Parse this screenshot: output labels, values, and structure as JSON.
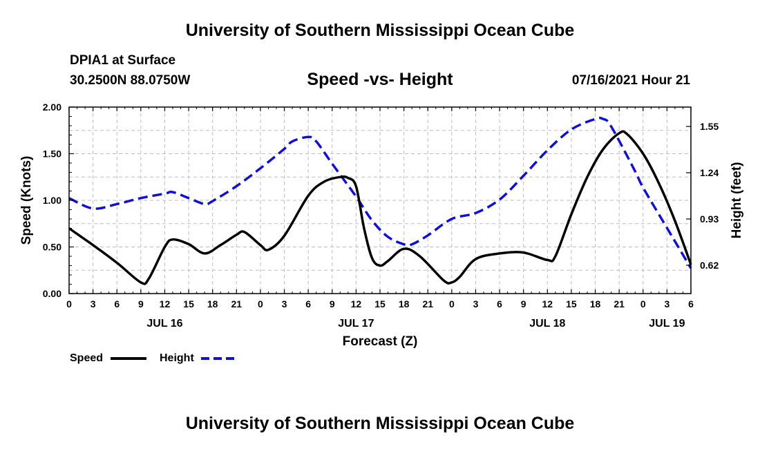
{
  "header": {
    "title": "University of Southern Mississippi Ocean Cube",
    "station": "DPIA1 at Surface",
    "coords": "30.2500N  88.0750W",
    "chart_title": "Speed -vs- Height",
    "datetime": "07/16/2021 Hour 21"
  },
  "footer": {
    "title": "University of Southern Mississippi Ocean Cube"
  },
  "legend": {
    "speed_label": "Speed",
    "height_label": "Height"
  },
  "colors": {
    "speed": "#000000",
    "height": "#1010d0",
    "grid": "#bdbdbd"
  },
  "chart_data": {
    "type": "line",
    "title": "Speed -vs- Height",
    "xlabel": "Forecast (Z)",
    "ylabel": "Speed (Knots)",
    "y2label": "Height (feet)",
    "x_unit": "hours since 2021-07-16 00Z",
    "xlim": [
      0,
      78
    ],
    "ylim": [
      0,
      2.0
    ],
    "y_ticks": [
      "0.00",
      "0.50",
      "1.00",
      "1.50",
      "2.00"
    ],
    "y_tick_values": [
      0,
      0.5,
      1.0,
      1.5,
      2.0
    ],
    "y2lim": [
      0.43,
      1.68
    ],
    "y2_ticks": [
      "0.62",
      "0.93",
      "1.24",
      "1.55"
    ],
    "y2_tick_values": [
      0.62,
      0.93,
      1.24,
      1.55
    ],
    "x_ticks": [
      {
        "x": 0,
        "label": "0"
      },
      {
        "x": 3,
        "label": "3"
      },
      {
        "x": 6,
        "label": "6"
      },
      {
        "x": 9,
        "label": "9"
      },
      {
        "x": 12,
        "label": "12"
      },
      {
        "x": 15,
        "label": "15"
      },
      {
        "x": 18,
        "label": "18"
      },
      {
        "x": 21,
        "label": "21"
      },
      {
        "x": 24,
        "label": "0"
      },
      {
        "x": 27,
        "label": "3"
      },
      {
        "x": 30,
        "label": "6"
      },
      {
        "x": 33,
        "label": "9"
      },
      {
        "x": 36,
        "label": "12"
      },
      {
        "x": 39,
        "label": "15"
      },
      {
        "x": 42,
        "label": "18"
      },
      {
        "x": 45,
        "label": "21"
      },
      {
        "x": 48,
        "label": "0"
      },
      {
        "x": 51,
        "label": "3"
      },
      {
        "x": 54,
        "label": "6"
      },
      {
        "x": 57,
        "label": "9"
      },
      {
        "x": 60,
        "label": "12"
      },
      {
        "x": 63,
        "label": "15"
      },
      {
        "x": 66,
        "label": "18"
      },
      {
        "x": 69,
        "label": "21"
      },
      {
        "x": 72,
        "label": "0"
      },
      {
        "x": 75,
        "label": "3"
      },
      {
        "x": 78,
        "label": "6"
      }
    ],
    "date_labels": [
      {
        "x": 12,
        "label": "JUL 16"
      },
      {
        "x": 36,
        "label": "JUL 17"
      },
      {
        "x": 60,
        "label": "JUL 18"
      },
      {
        "x": 75,
        "label": "JUL 19"
      }
    ],
    "series": [
      {
        "name": "Speed",
        "axis": "left",
        "style": "solid",
        "x": [
          0,
          3,
          6,
          9,
          10,
          12,
          13,
          15,
          17,
          19,
          21,
          22,
          24,
          25,
          27,
          30,
          32,
          34,
          35,
          36,
          37,
          38,
          39,
          40,
          42,
          44,
          47,
          48,
          49,
          51,
          54,
          57,
          60,
          61,
          63,
          65,
          67,
          69,
          70,
          72,
          74,
          76,
          78
        ],
        "values": [
          0.7,
          0.52,
          0.33,
          0.12,
          0.16,
          0.5,
          0.58,
          0.53,
          0.43,
          0.52,
          0.63,
          0.66,
          0.52,
          0.47,
          0.62,
          1.05,
          1.2,
          1.25,
          1.24,
          1.15,
          0.7,
          0.38,
          0.3,
          0.35,
          0.48,
          0.4,
          0.14,
          0.12,
          0.18,
          0.37,
          0.43,
          0.44,
          0.36,
          0.4,
          0.85,
          1.25,
          1.55,
          1.72,
          1.71,
          1.5,
          1.18,
          0.78,
          0.31
        ]
      },
      {
        "name": "Height",
        "axis": "right",
        "style": "dashed",
        "x": [
          0,
          3,
          6,
          9,
          12,
          13,
          15,
          17,
          18,
          21,
          24,
          27,
          28,
          30,
          31,
          33,
          36,
          38,
          40,
          42,
          43,
          45,
          48,
          51,
          54,
          57,
          60,
          63,
          66,
          67,
          68,
          71,
          72,
          75,
          78
        ],
        "values": [
          1.07,
          1.0,
          1.03,
          1.07,
          1.1,
          1.11,
          1.07,
          1.03,
          1.05,
          1.15,
          1.27,
          1.4,
          1.45,
          1.48,
          1.45,
          1.3,
          1.08,
          0.92,
          0.81,
          0.76,
          0.76,
          0.82,
          0.93,
          0.97,
          1.06,
          1.22,
          1.39,
          1.53,
          1.6,
          1.6,
          1.55,
          1.25,
          1.14,
          0.87,
          0.6
        ]
      }
    ]
  }
}
